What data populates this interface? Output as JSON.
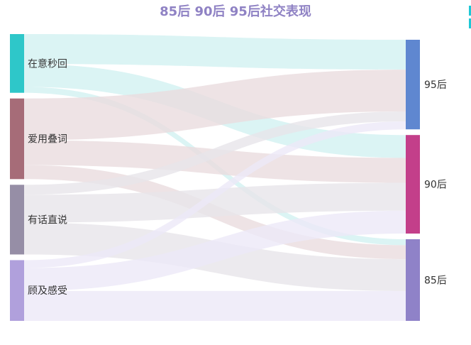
{
  "chart_data": {
    "type": "sankey",
    "title": "85后 90后 95后社交表现",
    "title_color": "#8f82c4",
    "source_nodes": [
      {
        "name": "在意秒回",
        "color": "#2ec7c9",
        "link_color": "#d2f1f1"
      },
      {
        "name": "爱用叠词",
        "color": "#a66c78",
        "link_color": "#eadcdf"
      },
      {
        "name": "有话直说",
        "color": "#968ea6",
        "link_color": "#e7e5ea"
      },
      {
        "name": "顾及感受",
        "color": "#b0a0dc",
        "link_color": "#ece9f7"
      }
    ],
    "target_nodes": [
      {
        "name": "95后",
        "color": "#5f87d0"
      },
      {
        "name": "90后",
        "color": "#c33f8a"
      },
      {
        "name": "85后",
        "color": "#8f82c8"
      }
    ],
    "links": [
      {
        "source": "在意秒回",
        "target": "95后",
        "value": 30
      },
      {
        "source": "在意秒回",
        "target": "90后",
        "value": 23
      },
      {
        "source": "在意秒回",
        "target": "85后",
        "value": 6
      },
      {
        "source": "爱用叠词",
        "target": "95后",
        "value": 42
      },
      {
        "source": "爱用叠词",
        "target": "90后",
        "value": 25
      },
      {
        "source": "爱用叠词",
        "target": "85后",
        "value": 14
      },
      {
        "source": "有话直说",
        "target": "95后",
        "value": 10
      },
      {
        "source": "有话直说",
        "target": "90后",
        "value": 28
      },
      {
        "source": "有话直说",
        "target": "85后",
        "value": 32
      },
      {
        "source": "顾及感受",
        "target": "95后",
        "value": 8
      },
      {
        "source": "顾及感受",
        "target": "90后",
        "value": 23
      },
      {
        "source": "顾及感受",
        "target": "85后",
        "value": 30
      }
    ]
  }
}
